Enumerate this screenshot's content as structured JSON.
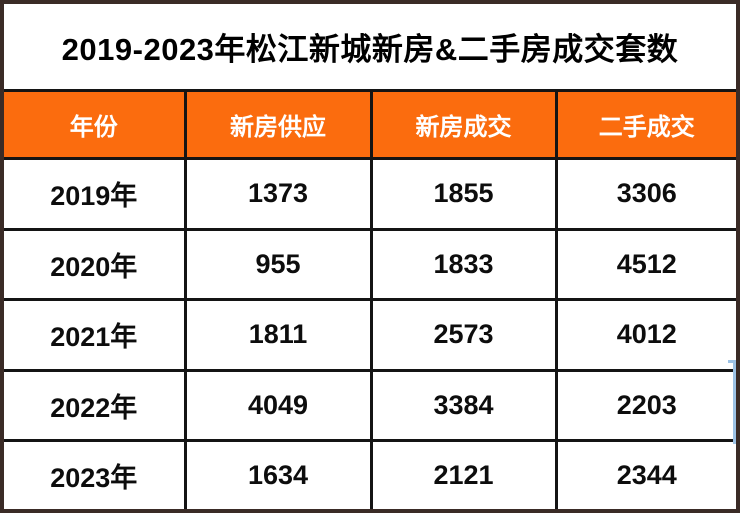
{
  "title": "2019-2023年松江新城新房&二手房成交套数",
  "chart_data": {
    "type": "table",
    "title": "2019-2023年松江新城新房&二手房成交套数",
    "columns": [
      "年份",
      "新房供应",
      "新房成交",
      "二手成交"
    ],
    "rows": [
      [
        "2019年",
        1373,
        1855,
        3306
      ],
      [
        "2020年",
        955,
        1833,
        4512
      ],
      [
        "2021年",
        1811,
        2573,
        4012
      ],
      [
        "2022年",
        4049,
        3384,
        2203
      ],
      [
        "2023年",
        1634,
        2121,
        2344
      ]
    ]
  },
  "colors": {
    "header_bg": "#fb6c0e",
    "header_text": "#ffffff",
    "title_text": "#000000",
    "body_text": "#0d0d0d",
    "grid_line": "#141414",
    "outer_border": "#3a2b26",
    "selection_line": "#9cc2e5"
  }
}
